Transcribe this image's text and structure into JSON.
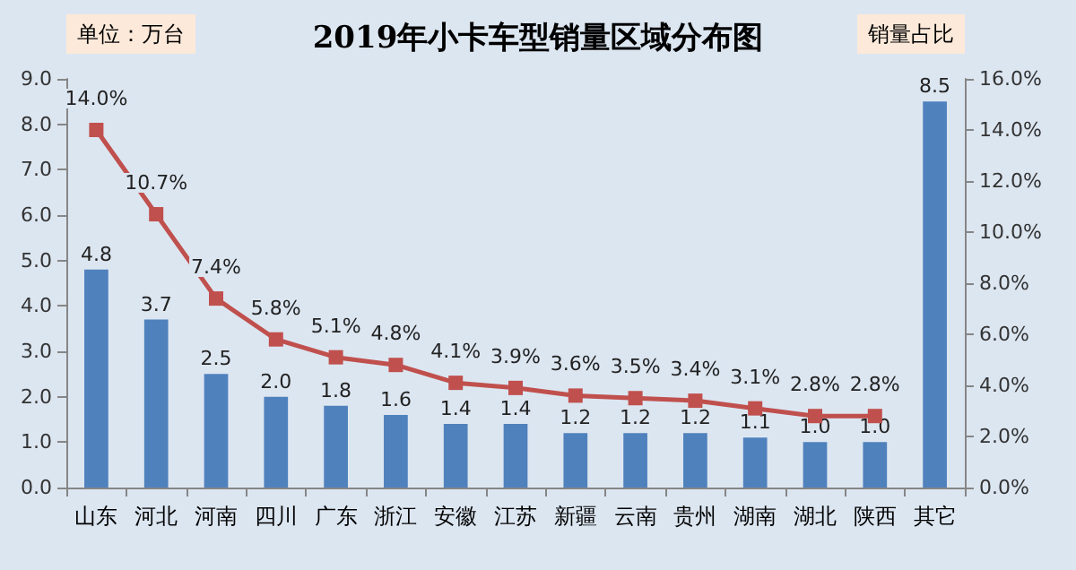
{
  "chart_data": {
    "type": "bar",
    "title": "2019年小卡车型销量区域分布图",
    "ylabel": "单位：万台",
    "y2label": "销量占比",
    "categories": [
      "山东",
      "河北",
      "河南",
      "四川",
      "广东",
      "浙江",
      "安徽",
      "江苏",
      "新疆",
      "云南",
      "贵州",
      "湖南",
      "湖北",
      "陕西",
      "其它"
    ],
    "series": [
      {
        "color": "#4f81bd",
        "values": [
          4.8,
          3.7,
          2.5,
          2.0,
          1.8,
          1.6,
          1.4,
          1.4,
          1.2,
          1.2,
          1.2,
          1.1,
          1.0,
          1.0,
          8.5
        ],
        "value_labels": [
          "4.8",
          "3.7",
          "2.5",
          "2.0",
          "1.8",
          "1.6",
          "1.4",
          "1.4",
          "1.2",
          "1.2",
          "1.2",
          "1.1",
          "1.0",
          "1.0",
          "8.5"
        ]
      },
      {
        "type": "line",
        "axis": "y2",
        "color": "#c0504d",
        "marker": "square",
        "values": [
          14.0,
          10.7,
          7.4,
          5.8,
          5.1,
          4.8,
          4.1,
          3.9,
          3.6,
          3.5,
          3.4,
          3.1,
          2.8,
          2.8,
          null
        ],
        "value_labels": [
          "14.0%",
          "10.7%",
          "7.4%",
          "5.8%",
          "5.1%",
          "4.8%",
          "4.1%",
          "3.9%",
          "3.6%",
          "3.5%",
          "3.4%",
          "3.1%",
          "2.8%",
          "2.8%",
          null
        ]
      }
    ],
    "ylim": [
      0,
      9
    ],
    "yticks": [
      {
        "value": 0,
        "label": "0.0"
      },
      {
        "value": 1,
        "label": "1.0"
      },
      {
        "value": 2,
        "label": "2.0"
      },
      {
        "value": 3,
        "label": "3.0"
      },
      {
        "value": 4,
        "label": "4.0"
      },
      {
        "value": 5,
        "label": "5.0"
      },
      {
        "value": 6,
        "label": "6.0"
      },
      {
        "value": 7,
        "label": "7.0"
      },
      {
        "value": 8,
        "label": "8.0"
      },
      {
        "value": 9,
        "label": "9.0"
      }
    ],
    "y2lim": [
      0,
      16
    ],
    "y2ticks": [
      {
        "value": 0,
        "label": "0.0%"
      },
      {
        "value": 2,
        "label": "2.0%"
      },
      {
        "value": 4,
        "label": "4.0%"
      },
      {
        "value": 6,
        "label": "6.0%"
      },
      {
        "value": 8,
        "label": "8.0%"
      },
      {
        "value": 10,
        "label": "10.0%"
      },
      {
        "value": 12,
        "label": "12.0%"
      },
      {
        "value": 14,
        "label": "14.0%"
      },
      {
        "value": 16,
        "label": "16.0%"
      }
    ],
    "grid": false
  }
}
